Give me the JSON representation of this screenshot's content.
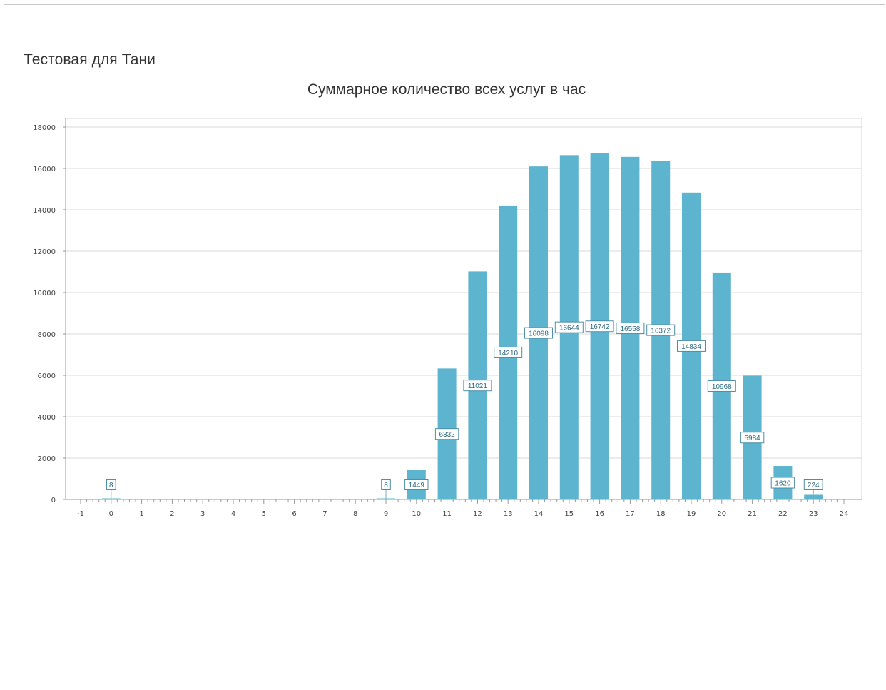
{
  "report": {
    "title": "Тестовая для Тани"
  },
  "chart_data": {
    "type": "bar",
    "title": "Суммарное количество всех услуг в час",
    "xlabel": "",
    "ylabel": "",
    "x_ticks": [
      "-1",
      "0",
      "1",
      "2",
      "3",
      "4",
      "5",
      "6",
      "7",
      "8",
      "9",
      "10",
      "11",
      "12",
      "13",
      "14",
      "15",
      "16",
      "17",
      "18",
      "19",
      "20",
      "21",
      "22",
      "23",
      "24"
    ],
    "y_ticks": [
      "0",
      "2000",
      "4000",
      "6000",
      "8000",
      "10000",
      "12000",
      "14000",
      "16000",
      "18000"
    ],
    "xlim": [
      -1,
      24
    ],
    "ylim": [
      0,
      18000
    ],
    "grid": true,
    "bar_color": "#5db4cf",
    "series": [
      {
        "x": [
          0,
          9,
          10,
          11,
          12,
          13,
          14,
          15,
          16,
          17,
          18,
          19,
          20,
          21,
          22,
          23
        ],
        "values": [
          8,
          8,
          1449,
          6332,
          11021,
          14210,
          16098,
          16644,
          16742,
          16558,
          16372,
          14834,
          10968,
          5984,
          1620,
          224
        ],
        "labels": [
          "8",
          "8",
          "1449",
          "6332",
          "11021",
          "14210",
          "16098",
          "16644",
          "16742",
          "16558",
          "16372",
          "14834",
          "10968",
          "5984",
          "1620",
          "224"
        ]
      }
    ]
  }
}
